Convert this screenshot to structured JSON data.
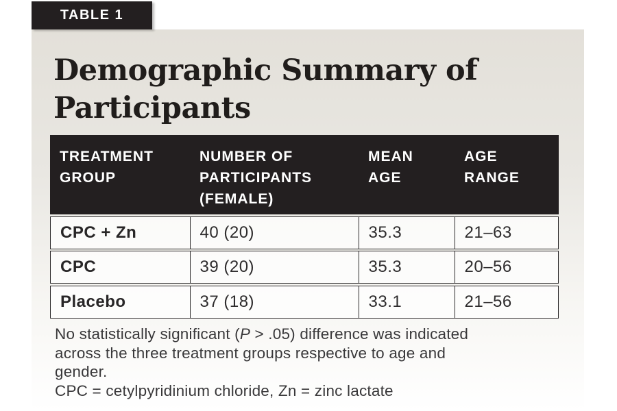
{
  "badge": {
    "label": "TABLE 1"
  },
  "title": {
    "full": "Demographic Summary of Participants",
    "line1": "Demographic Summary of",
    "line2": "Participants"
  },
  "table": {
    "columns": [
      "TREATMENT GROUP",
      "NUMBER OF PARTICIPANTS (FEMALE)",
      "MEAN AGE",
      "AGE RANGE"
    ],
    "rows": [
      {
        "group": "CPC + Zn",
        "participants": "40 (20)",
        "mean_age": "35.3",
        "age_range": "21–63"
      },
      {
        "group": "CPC",
        "participants": "39 (20)",
        "mean_age": "35.3",
        "age_range": "20–56"
      },
      {
        "group": "Placebo",
        "participants": "37 (18)",
        "mean_age": "33.1",
        "age_range": "21–56"
      }
    ]
  },
  "footnote": {
    "line1_pre": "No statistically significant (",
    "line1_italic": "P",
    "line1_post": " > .05) difference was indicated",
    "line2": "across the three treatment groups respective to age and",
    "line3": "gender.",
    "line4": "CPC = cetylpyridinium chloride, Zn = zinc lactate"
  },
  "colors": {
    "header_black": "#231f20",
    "card_top": "#e3e0d9",
    "card_bottom": "#ffffff",
    "border": "#2b292a",
    "text": "#2e2c2d"
  }
}
